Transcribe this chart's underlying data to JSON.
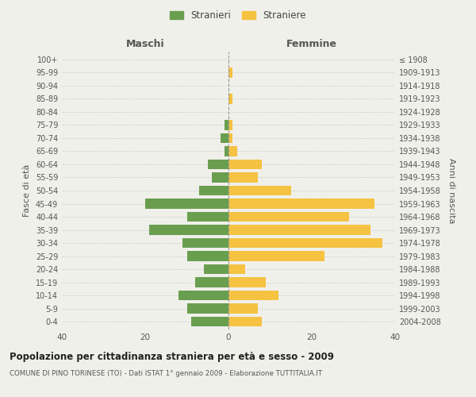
{
  "age_groups": [
    "0-4",
    "5-9",
    "10-14",
    "15-19",
    "20-24",
    "25-29",
    "30-34",
    "35-39",
    "40-44",
    "45-49",
    "50-54",
    "55-59",
    "60-64",
    "65-69",
    "70-74",
    "75-79",
    "80-84",
    "85-89",
    "90-94",
    "95-99",
    "100+"
  ],
  "birth_years": [
    "2004-2008",
    "1999-2003",
    "1994-1998",
    "1989-1993",
    "1984-1988",
    "1979-1983",
    "1974-1978",
    "1969-1973",
    "1964-1968",
    "1959-1963",
    "1954-1958",
    "1949-1953",
    "1944-1948",
    "1939-1943",
    "1934-1938",
    "1929-1933",
    "1924-1928",
    "1919-1923",
    "1914-1918",
    "1909-1913",
    "≤ 1908"
  ],
  "maschi": [
    9,
    10,
    12,
    8,
    6,
    10,
    11,
    19,
    10,
    20,
    7,
    4,
    5,
    1,
    2,
    1,
    0,
    0,
    0,
    0,
    0
  ],
  "femmine": [
    8,
    7,
    12,
    9,
    4,
    23,
    37,
    34,
    29,
    35,
    15,
    7,
    8,
    2,
    1,
    1,
    0,
    1,
    0,
    1,
    0
  ],
  "maschi_color": "#6a9e4f",
  "femmine_color": "#f5c242",
  "background_color": "#f0f0eb",
  "grid_color": "#cccccc",
  "title": "Popolazione per cittadinanza straniera per età e sesso - 2009",
  "subtitle": "COMUNE DI PINO TORINESE (TO) - Dati ISTAT 1° gennaio 2009 - Elaborazione TUTTITALIA.IT",
  "xlabel_left": "Maschi",
  "xlabel_right": "Femmine",
  "ylabel_left": "Fasce di età",
  "ylabel_right": "Anni di nascita",
  "legend_maschi": "Stranieri",
  "legend_femmine": "Straniere",
  "xlim": 40,
  "bar_height": 0.75
}
